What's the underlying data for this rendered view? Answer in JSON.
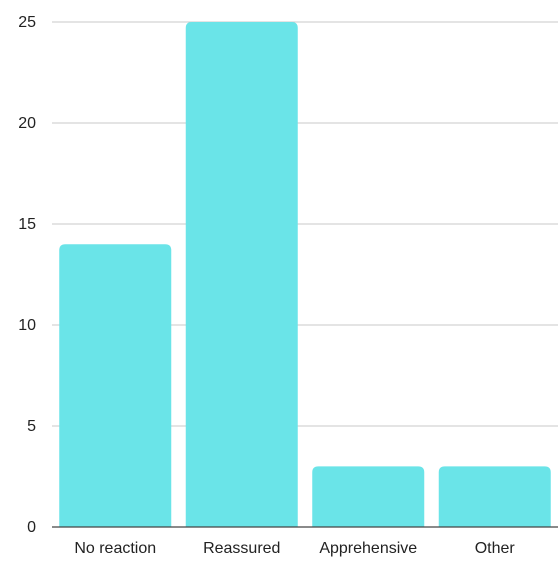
{
  "chart_data": {
    "type": "bar",
    "title": "",
    "xlabel": "",
    "ylabel": "",
    "categories": [
      "No reaction",
      "Reassured",
      "Apprehensive",
      "Other"
    ],
    "values": [
      14,
      25,
      3,
      3
    ],
    "ylim": [
      0,
      25
    ],
    "yticks": [
      0,
      5,
      10,
      15,
      20,
      25
    ],
    "grid": true,
    "legend": "none",
    "colors": {
      "bar": "#6ae4e8",
      "grid": "#c8c8c8",
      "axis": "#444444",
      "text": "#222222"
    }
  }
}
